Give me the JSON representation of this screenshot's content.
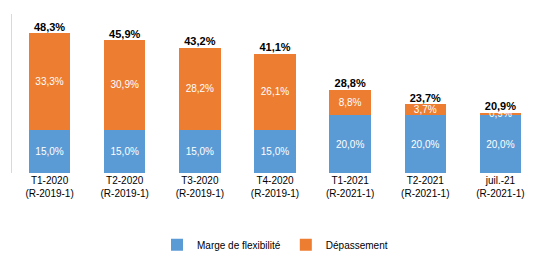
{
  "chart_data": {
    "type": "bar",
    "stacked": true,
    "data_labels": true,
    "tick_labels": "x",
    "grid": false,
    "legend": "bottom",
    "ylim": [
      0,
      55
    ],
    "categories": [
      "T1-2020\n(R-2019-1)",
      "T2-2020\n(R-2019-1)",
      "T3-2020\n(R-2019-1)",
      "T4-2020\n(R-2019-1)",
      "T1-2021\n(R-2021-1)",
      "T2-2021\n(R-2021-1)",
      "juil.-21\n(R-2021-1)"
    ],
    "series": [
      {
        "name": "Marge de flexibilité",
        "color": "#5b9bd5",
        "values": [
          15.0,
          15.0,
          15.0,
          15.0,
          20.0,
          20.0,
          20.0
        ],
        "value_labels": [
          "15,0%",
          "15,0%",
          "15,0%",
          "15,0%",
          "20,0%",
          "20,0%",
          "20,0%"
        ]
      },
      {
        "name": "Dépassement",
        "color": "#ed7d31",
        "values": [
          33.3,
          30.9,
          28.2,
          26.1,
          8.8,
          3.7,
          0.9
        ],
        "value_labels": [
          "33,3%",
          "30,9%",
          "28,2%",
          "26,1%",
          "8,8%",
          "3,7%",
          "0,9%"
        ]
      }
    ],
    "totals": {
      "values": [
        48.3,
        45.9,
        43.2,
        41.1,
        28.8,
        23.7,
        20.9
      ],
      "value_labels": [
        "48,3%",
        "45,9%",
        "43,2%",
        "41,1%",
        "28,8%",
        "23,7%",
        "20,9%"
      ]
    }
  }
}
